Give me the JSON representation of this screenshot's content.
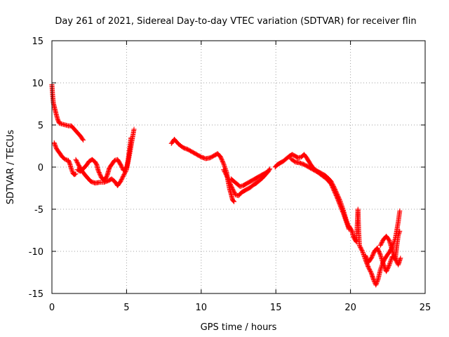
{
  "chart_data": {
    "type": "scatter",
    "title": "Day 261 of 2021, Sidereal Day-to-day VTEC variation (SDTVAR) for receiver flin",
    "xlabel": "GPS time / hours",
    "ylabel": "SDTVAR / TECUs",
    "xlim": [
      0,
      25
    ],
    "ylim": [
      -15,
      15
    ],
    "xticks": [
      0,
      5,
      10,
      15,
      20,
      25
    ],
    "yticks": [
      -15,
      -10,
      -5,
      0,
      5,
      10,
      15
    ],
    "xtick_labels": [
      "0",
      "5",
      "10",
      "15",
      "20",
      "25"
    ],
    "ytick_labels": [
      "-15",
      "-10",
      "-5",
      "0",
      "5",
      "10",
      "15"
    ],
    "grid": true,
    "marker": "+",
    "color": "#ff0000",
    "series": [
      {
        "name": "track-1",
        "points": [
          [
            0.0,
            9.8
          ],
          [
            0.05,
            8.5
          ],
          [
            0.1,
            7.6
          ],
          [
            0.2,
            6.9
          ],
          [
            0.3,
            6.2
          ],
          [
            0.4,
            5.6
          ],
          [
            0.5,
            5.2
          ],
          [
            0.7,
            5.1
          ],
          [
            0.9,
            5.0
          ],
          [
            1.1,
            4.9
          ],
          [
            1.3,
            4.9
          ],
          [
            1.5,
            4.5
          ],
          [
            1.7,
            4.1
          ],
          [
            1.9,
            3.7
          ],
          [
            2.1,
            3.2
          ]
        ]
      },
      {
        "name": "track-2",
        "points": [
          [
            0.15,
            2.9
          ],
          [
            0.3,
            2.2
          ],
          [
            0.5,
            1.7
          ],
          [
            0.7,
            1.2
          ],
          [
            0.9,
            0.9
          ],
          [
            1.1,
            0.8
          ],
          [
            1.2,
            0.4
          ],
          [
            1.3,
            -0.2
          ],
          [
            1.4,
            -0.7
          ],
          [
            1.5,
            -0.9
          ],
          [
            1.6,
            -0.8
          ]
        ]
      },
      {
        "name": "track-3",
        "points": [
          [
            1.6,
            0.9
          ],
          [
            1.8,
            0.2
          ],
          [
            2.0,
            -0.4
          ],
          [
            2.2,
            -0.9
          ],
          [
            2.4,
            -1.3
          ],
          [
            2.6,
            -1.7
          ],
          [
            2.9,
            -1.9
          ],
          [
            3.2,
            -1.8
          ],
          [
            3.5,
            -1.8
          ],
          [
            3.8,
            -1.6
          ],
          [
            4.0,
            -1.4
          ],
          [
            4.2,
            -1.7
          ],
          [
            4.4,
            -2.2
          ],
          [
            4.6,
            -1.7
          ],
          [
            4.8,
            -1.0
          ],
          [
            5.0,
            -0.3
          ],
          [
            5.2,
            1.5
          ],
          [
            5.35,
            3.0
          ],
          [
            5.5,
            4.5
          ]
        ]
      },
      {
        "name": "track-4",
        "points": [
          [
            1.7,
            -0.3
          ],
          [
            1.9,
            -0.5
          ],
          [
            2.1,
            -0.2
          ],
          [
            2.3,
            0.2
          ],
          [
            2.5,
            0.7
          ],
          [
            2.7,
            0.9
          ],
          [
            2.9,
            0.6
          ],
          [
            3.0,
            0.3
          ],
          [
            3.1,
            -0.4
          ],
          [
            3.3,
            -1.2
          ],
          [
            3.5,
            -1.6
          ],
          [
            3.7,
            -1.0
          ],
          [
            3.85,
            -0.1
          ],
          [
            4.0,
            0.3
          ],
          [
            4.2,
            0.8
          ],
          [
            4.4,
            0.9
          ],
          [
            4.6,
            0.3
          ],
          [
            4.8,
            -0.4
          ],
          [
            5.0,
            -0.1
          ],
          [
            5.1,
            0.8
          ],
          [
            5.2,
            2.2
          ],
          [
            5.3,
            3.5
          ]
        ]
      },
      {
        "name": "track-5",
        "points": [
          [
            8.0,
            2.8
          ],
          [
            8.2,
            3.3
          ],
          [
            8.5,
            2.7
          ],
          [
            8.8,
            2.3
          ],
          [
            9.1,
            2.1
          ],
          [
            9.4,
            1.8
          ],
          [
            9.7,
            1.5
          ],
          [
            10.0,
            1.2
          ],
          [
            10.3,
            1.0
          ],
          [
            10.6,
            1.1
          ],
          [
            10.9,
            1.4
          ],
          [
            11.1,
            1.6
          ],
          [
            11.3,
            1.2
          ],
          [
            11.5,
            0.4
          ],
          [
            11.7,
            -0.6
          ],
          [
            11.8,
            -1.7
          ],
          [
            11.9,
            -2.6
          ],
          [
            12.0,
            -3.2
          ],
          [
            12.1,
            -3.9
          ],
          [
            12.2,
            -4.1
          ]
        ]
      },
      {
        "name": "track-6",
        "points": [
          [
            11.5,
            -0.3
          ],
          [
            11.7,
            -1.0
          ],
          [
            11.9,
            -1.8
          ],
          [
            12.1,
            -2.6
          ],
          [
            12.3,
            -3.3
          ],
          [
            12.5,
            -3.4
          ],
          [
            12.7,
            -3.0
          ],
          [
            12.9,
            -2.8
          ],
          [
            13.1,
            -2.6
          ],
          [
            13.3,
            -2.4
          ],
          [
            13.5,
            -2.1
          ],
          [
            13.7,
            -1.9
          ],
          [
            13.9,
            -1.6
          ],
          [
            14.1,
            -1.3
          ],
          [
            14.3,
            -0.9
          ],
          [
            14.5,
            -0.5
          ],
          [
            14.6,
            -0.2
          ]
        ]
      },
      {
        "name": "track-7",
        "points": [
          [
            12.0,
            -1.4
          ],
          [
            12.2,
            -1.7
          ],
          [
            12.4,
            -2.0
          ],
          [
            12.6,
            -2.3
          ],
          [
            12.8,
            -2.2
          ],
          [
            13.0,
            -2.0
          ],
          [
            13.2,
            -1.8
          ],
          [
            13.4,
            -1.6
          ],
          [
            13.6,
            -1.4
          ],
          [
            13.8,
            -1.2
          ],
          [
            14.0,
            -1.0
          ],
          [
            14.2,
            -0.8
          ],
          [
            14.4,
            -0.6
          ]
        ]
      },
      {
        "name": "track-8",
        "points": [
          [
            14.95,
            0.0
          ],
          [
            15.1,
            0.3
          ],
          [
            15.3,
            0.5
          ],
          [
            15.5,
            0.7
          ],
          [
            15.7,
            1.0
          ],
          [
            15.9,
            1.3
          ],
          [
            16.1,
            1.5
          ],
          [
            16.3,
            1.3
          ],
          [
            16.5,
            1.1
          ],
          [
            16.7,
            1.2
          ],
          [
            16.9,
            1.5
          ],
          [
            17.1,
            1.0
          ],
          [
            17.3,
            0.4
          ],
          [
            17.5,
            -0.1
          ],
          [
            17.7,
            -0.4
          ],
          [
            17.9,
            -0.6
          ],
          [
            18.1,
            -0.8
          ],
          [
            18.3,
            -1.0
          ],
          [
            18.5,
            -1.3
          ],
          [
            18.7,
            -1.7
          ],
          [
            18.9,
            -2.4
          ],
          [
            19.1,
            -3.2
          ],
          [
            19.3,
            -4.0
          ],
          [
            19.5,
            -5.0
          ],
          [
            19.7,
            -6.2
          ],
          [
            19.9,
            -7.2
          ]
        ]
      },
      {
        "name": "track-9",
        "points": [
          [
            16.0,
            1.0
          ],
          [
            16.3,
            0.6
          ],
          [
            16.6,
            0.5
          ],
          [
            16.9,
            0.3
          ],
          [
            17.2,
            0.0
          ],
          [
            17.5,
            -0.3
          ],
          [
            17.8,
            -0.6
          ],
          [
            18.1,
            -1.0
          ],
          [
            18.4,
            -1.4
          ],
          [
            18.7,
            -2.0
          ],
          [
            18.9,
            -2.8
          ],
          [
            19.1,
            -3.6
          ],
          [
            19.3,
            -4.5
          ],
          [
            19.5,
            -5.4
          ],
          [
            19.7,
            -6.4
          ],
          [
            19.9,
            -7.4
          ]
        ]
      },
      {
        "name": "track-10",
        "points": [
          [
            19.9,
            -7.0
          ],
          [
            20.1,
            -7.6
          ],
          [
            20.2,
            -8.3
          ],
          [
            20.4,
            -8.9
          ],
          [
            20.5,
            -5.0
          ],
          [
            20.55,
            -7.6
          ],
          [
            20.6,
            -9.3
          ],
          [
            20.8,
            -10.0
          ],
          [
            21.0,
            -11.0
          ],
          [
            21.2,
            -11.9
          ],
          [
            21.4,
            -12.6
          ],
          [
            21.55,
            -13.4
          ],
          [
            21.7,
            -14.0
          ],
          [
            21.85,
            -13.3
          ],
          [
            22.0,
            -12.2
          ],
          [
            22.2,
            -11.2
          ],
          [
            22.4,
            -10.6
          ],
          [
            22.6,
            -10.1
          ],
          [
            22.8,
            -9.5
          ],
          [
            23.0,
            -8.5
          ],
          [
            23.1,
            -7.5
          ],
          [
            23.2,
            -6.5
          ],
          [
            23.3,
            -5.2
          ]
        ]
      },
      {
        "name": "track-11",
        "points": [
          [
            21.0,
            -10.5
          ],
          [
            21.2,
            -11.3
          ],
          [
            21.4,
            -10.8
          ],
          [
            21.6,
            -10.0
          ],
          [
            21.8,
            -9.6
          ],
          [
            22.0,
            -10.4
          ],
          [
            22.2,
            -11.5
          ],
          [
            22.4,
            -12.4
          ],
          [
            22.6,
            -11.6
          ],
          [
            22.8,
            -10.6
          ],
          [
            23.0,
            -10.9
          ],
          [
            23.2,
            -11.6
          ],
          [
            23.35,
            -10.8
          ]
        ]
      },
      {
        "name": "track-12",
        "points": [
          [
            22.0,
            -9.3
          ],
          [
            22.2,
            -8.6
          ],
          [
            22.4,
            -8.2
          ],
          [
            22.6,
            -8.7
          ],
          [
            22.8,
            -9.9
          ],
          [
            23.0,
            -10.9
          ],
          [
            23.1,
            -9.4
          ],
          [
            23.2,
            -8.1
          ],
          [
            23.3,
            -7.6
          ]
        ]
      }
    ]
  }
}
